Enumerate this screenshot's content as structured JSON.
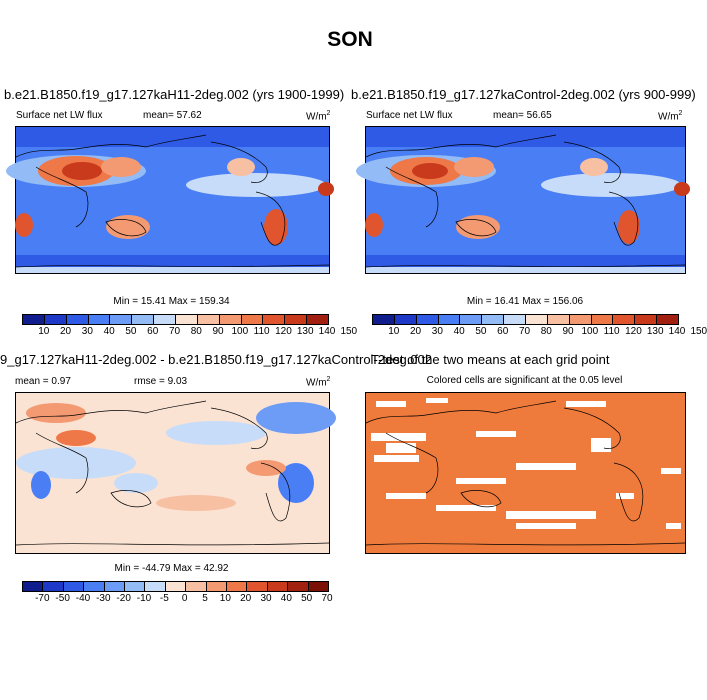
{
  "title": "SON",
  "colors": {
    "levels13": [
      "#0f1e8c",
      "#1e38c8",
      "#2f5ae6",
      "#4a7ef4",
      "#6d9cf6",
      "#93bbf6",
      "#c7dcf8",
      "#fbe3d4",
      "#f7c0a3",
      "#f39a72",
      "#ee7847",
      "#e0552d",
      "#c93a1d",
      "#a1200f"
    ],
    "levels14": [
      "#0f1e8c",
      "#1e38c8",
      "#2f5ae6",
      "#4a7ef4",
      "#6d9cf6",
      "#93bbf6",
      "#c7dcf8",
      "#fbe3d4",
      "#f7c0a3",
      "#f39a72",
      "#ee7847",
      "#e0552d",
      "#c93a1d",
      "#a1200f",
      "#7a1006"
    ],
    "significant": "#ee7a3c",
    "coast": "#000000"
  },
  "panels": {
    "p1": {
      "title": "b.e21.B1850.f19_g17.127kaH11-2deg.002 (yrs 1900-1999)",
      "variable": "Surface net LW flux",
      "mean_label": "mean=",
      "mean_value": "57.62",
      "units_main": "W/m",
      "units_sup": "2",
      "minmax": "Min = 15.41 Max = 159.34",
      "ticks": [
        "10",
        "20",
        "30",
        "40",
        "50",
        "60",
        "70",
        "80",
        "90",
        "100",
        "110",
        "120",
        "130",
        "140",
        "150"
      ]
    },
    "p2": {
      "title": "b.e21.B1850.f19_g17.127kaControl-2deg.002 (yrs 900-999)",
      "variable": "Surface net LW flux",
      "mean_label": "mean=",
      "mean_value": "56.65",
      "units_main": "W/m",
      "units_sup": "2",
      "minmax": "Min = 16.41 Max = 156.06",
      "ticks": [
        "10",
        "20",
        "30",
        "40",
        "50",
        "60",
        "70",
        "80",
        "90",
        "100",
        "110",
        "120",
        "130",
        "140",
        "150"
      ]
    },
    "p3": {
      "title": "9_g17.127kaH11-2deg.002 - b.e21.B1850.f19_g17.127kaControl-2deg.002",
      "mean_label": "mean =",
      "mean_value": "0.97",
      "rmse_label": "rmse =",
      "rmse_value": "9.03",
      "units_main": "W/m",
      "units_sup": "2",
      "minmax": "Min = -44.79 Max = 42.92",
      "ticks": [
        "-70",
        "-50",
        "-40",
        "-30",
        "-20",
        "-10",
        "-5",
        "0",
        "5",
        "10",
        "20",
        "30",
        "40",
        "50",
        "70"
      ]
    },
    "p4": {
      "title": "T-test of the two means at each grid point",
      "subtitle": "Colored cells are significant at the 0.05 level"
    }
  },
  "chart_data": [
    {
      "type": "heatmap",
      "title": "b.e21.B1850.f19_g17.127kaH11-2deg.002 (yrs 1900-1999)",
      "variable": "Surface net LW flux",
      "units": "W/m^2",
      "mean": 57.62,
      "min": 15.41,
      "max": 159.34,
      "contour_levels": [
        10,
        20,
        30,
        40,
        50,
        60,
        70,
        80,
        90,
        100,
        110,
        120,
        130,
        140,
        150
      ]
    },
    {
      "type": "heatmap",
      "title": "b.e21.B1850.f19_g17.127kaControl-2deg.002 (yrs 900-999)",
      "variable": "Surface net LW flux",
      "units": "W/m^2",
      "mean": 56.65,
      "min": 16.41,
      "max": 156.06,
      "contour_levels": [
        10,
        20,
        30,
        40,
        50,
        60,
        70,
        80,
        90,
        100,
        110,
        120,
        130,
        140,
        150
      ]
    },
    {
      "type": "heatmap",
      "title": "9_g17.127kaH11-2deg.002 - b.e21.B1850.f19_g17.127kaControl-2deg.002",
      "units": "W/m^2",
      "mean": 0.97,
      "rmse": 9.03,
      "min": -44.79,
      "max": 42.92,
      "contour_levels": [
        -70,
        -50,
        -40,
        -30,
        -20,
        -10,
        -5,
        0,
        5,
        10,
        20,
        30,
        40,
        50,
        70
      ]
    },
    {
      "type": "heatmap",
      "title": "T-test of the two means at each grid point",
      "subtitle": "Colored cells are significant at the 0.05 level",
      "significance_level": 0.05
    }
  ]
}
